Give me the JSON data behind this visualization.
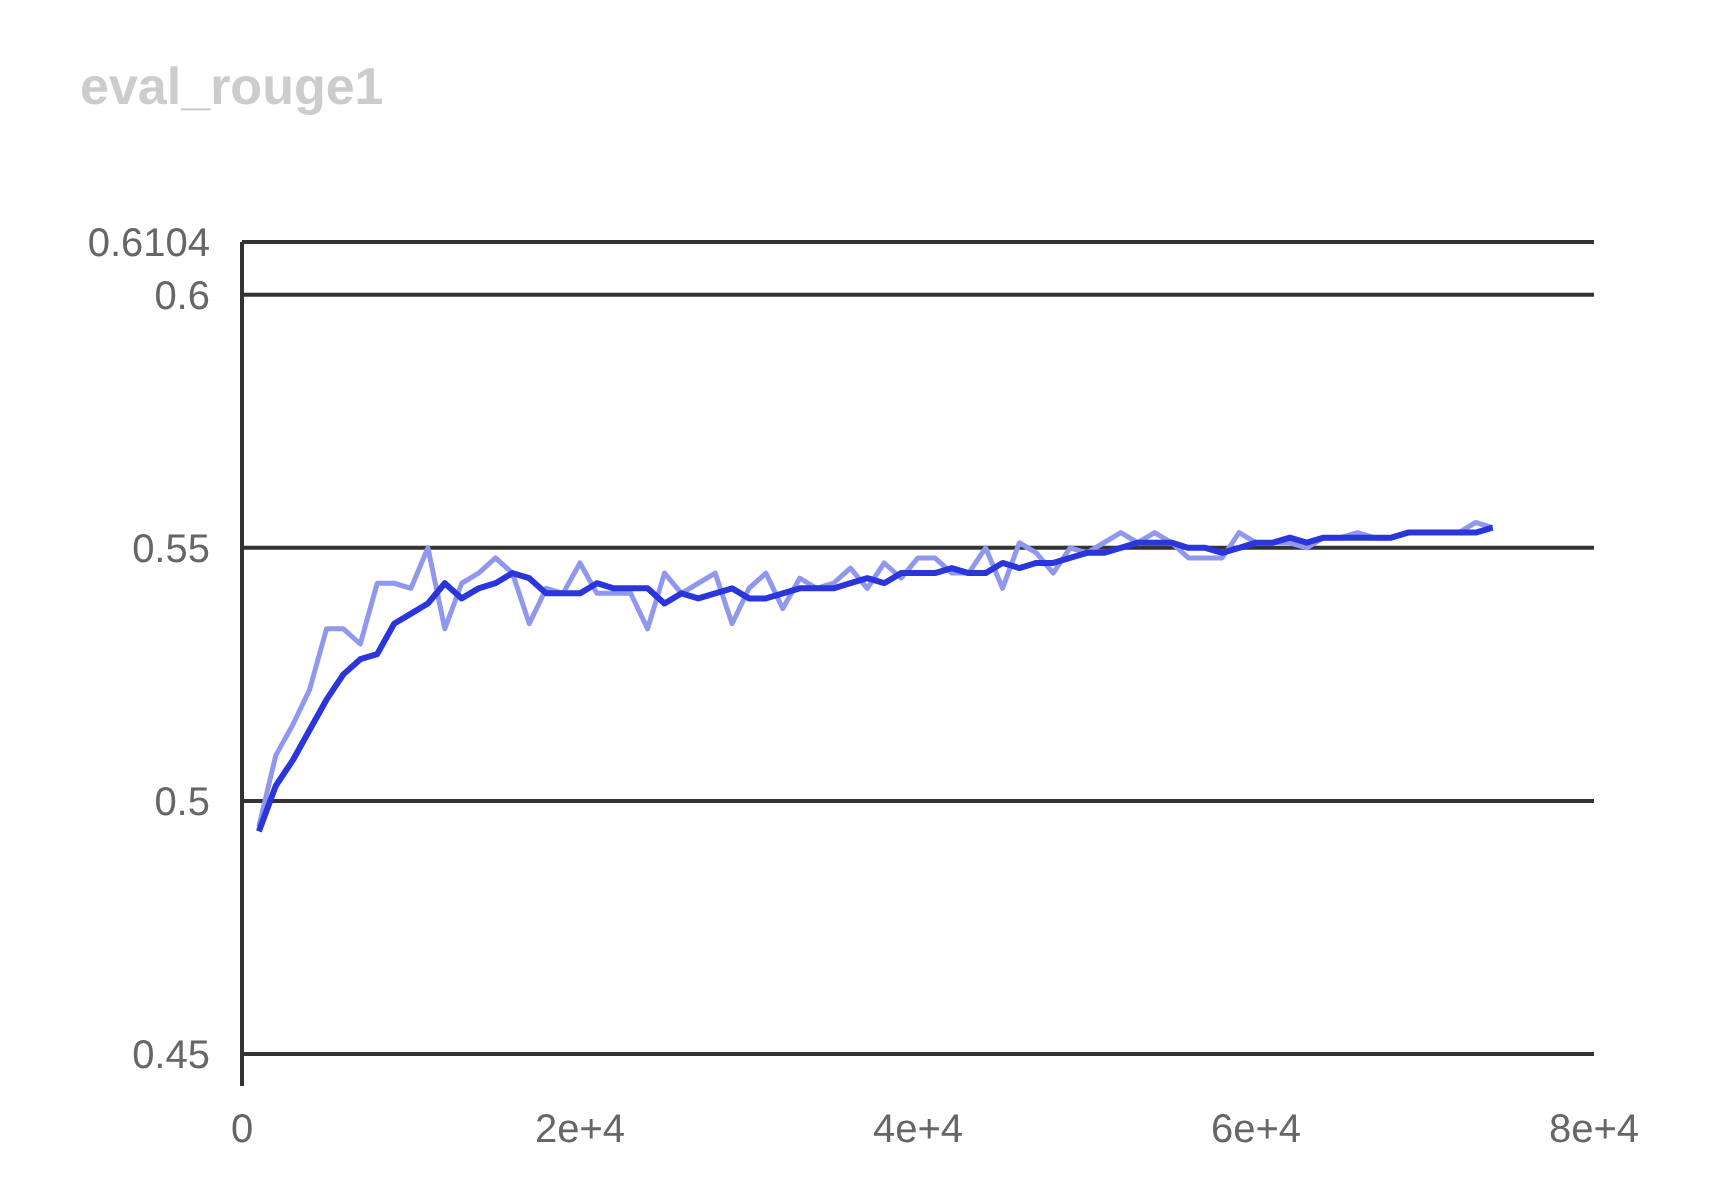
{
  "chart_data": {
    "type": "line",
    "title": "eval_rouge1",
    "x": [
      1000,
      2000,
      3000,
      4000,
      5000,
      6000,
      7000,
      8000,
      9000,
      10000,
      11000,
      12000,
      13000,
      14000,
      15000,
      16000,
      17000,
      18000,
      19000,
      20000,
      21000,
      22000,
      23000,
      24000,
      25000,
      26000,
      27000,
      28000,
      29000,
      30000,
      31000,
      32000,
      33000,
      34000,
      35000,
      36000,
      37000,
      38000,
      39000,
      40000,
      41000,
      42000,
      43000,
      44000,
      45000,
      46000,
      47000,
      48000,
      49000,
      50000,
      51000,
      52000,
      53000,
      54000,
      55000,
      56000,
      57000,
      58000,
      59000,
      60000,
      61000,
      62000,
      63000,
      64000,
      65000,
      66000,
      67000,
      68000,
      69000,
      70000,
      71000,
      72000,
      73000,
      74000
    ],
    "series": [
      {
        "color": "#9097ee",
        "values": [
          0.495,
          0.509,
          0.515,
          0.522,
          0.534,
          0.534,
          0.531,
          0.543,
          0.543,
          0.542,
          0.55,
          0.534,
          0.543,
          0.545,
          0.548,
          0.545,
          0.535,
          0.542,
          0.541,
          0.547,
          0.541,
          0.541,
          0.541,
          0.534,
          0.545,
          0.541,
          0.543,
          0.545,
          0.535,
          0.542,
          0.545,
          0.538,
          0.544,
          0.542,
          0.543,
          0.546,
          0.542,
          0.547,
          0.544,
          0.548,
          0.548,
          0.545,
          0.545,
          0.55,
          0.542,
          0.551,
          0.549,
          0.545,
          0.55,
          0.549,
          0.551,
          0.553,
          0.551,
          0.553,
          0.551,
          0.548,
          0.548,
          0.548,
          0.553,
          0.551,
          0.551,
          0.551,
          0.55,
          0.552,
          0.552,
          0.553,
          0.552,
          0.552,
          0.553,
          0.553,
          0.553,
          0.553,
          0.555,
          0.554
        ]
      },
      {
        "color": "#2a35dc",
        "values": [
          0.494,
          0.503,
          0.508,
          0.514,
          0.52,
          0.525,
          0.528,
          0.529,
          0.535,
          0.537,
          0.539,
          0.543,
          0.54,
          0.542,
          0.543,
          0.545,
          0.544,
          0.541,
          0.541,
          0.541,
          0.543,
          0.542,
          0.542,
          0.542,
          0.539,
          0.541,
          0.54,
          0.541,
          0.542,
          0.54,
          0.54,
          0.541,
          0.542,
          0.542,
          0.542,
          0.543,
          0.544,
          0.543,
          0.545,
          0.545,
          0.545,
          0.546,
          0.545,
          0.545,
          0.547,
          0.546,
          0.547,
          0.547,
          0.548,
          0.549,
          0.549,
          0.55,
          0.551,
          0.551,
          0.551,
          0.55,
          0.55,
          0.549,
          0.55,
          0.551,
          0.551,
          0.552,
          0.551,
          0.552,
          0.552,
          0.552,
          0.552,
          0.552,
          0.553,
          0.553,
          0.553,
          0.553,
          0.553,
          0.554
        ]
      }
    ],
    "xlim": [
      0,
      80000
    ],
    "xticks": [
      0,
      {
        "value": 20000,
        "label": "2e+4"
      },
      {
        "value": 40000,
        "label": "4e+4"
      },
      {
        "value": 60000,
        "label": "6e+4"
      },
      {
        "value": 80000,
        "label": "8e+4"
      }
    ],
    "ylim": [
      0.4437,
      0.6104
    ],
    "yticks": [
      0.45,
      0.5,
      0.55,
      0.6,
      0.6104
    ],
    "grid": "y",
    "legend": false,
    "marker": "none",
    "line_style": "solid"
  }
}
